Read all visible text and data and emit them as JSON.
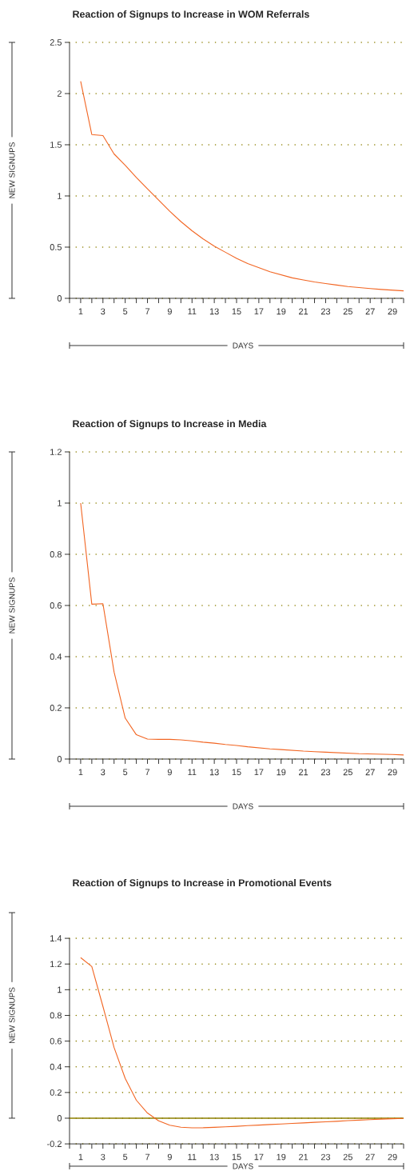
{
  "chart_data": [
    {
      "type": "line",
      "title": "Reaction of Signups to Increase in WOM Referrals",
      "xlabel": "DAYS",
      "ylabel": "NEW SIGNUPS",
      "color": "#f26522",
      "grid": "y",
      "x": [
        1,
        2,
        3,
        4,
        5,
        6,
        7,
        8,
        9,
        10,
        11,
        12,
        13,
        14,
        15,
        16,
        17,
        18,
        19,
        20,
        21,
        22,
        23,
        24,
        25,
        26,
        27,
        28,
        29,
        30
      ],
      "values": [
        2.12,
        1.6,
        1.59,
        1.41,
        1.3,
        1.18,
        1.07,
        0.96,
        0.85,
        0.75,
        0.66,
        0.58,
        0.51,
        0.45,
        0.39,
        0.34,
        0.3,
        0.26,
        0.23,
        0.2,
        0.18,
        0.16,
        0.145,
        0.13,
        0.115,
        0.105,
        0.095,
        0.087,
        0.08,
        0.073
      ],
      "xlim": [
        0,
        30
      ],
      "ylim": [
        0,
        2.5
      ],
      "yticks": [
        0,
        0.5,
        1,
        1.5,
        2,
        2.5
      ],
      "xticks": [
        {
          "value": 0,
          "label": null
        },
        1,
        {
          "value": 2,
          "label": null
        },
        3,
        {
          "value": 4,
          "label": null
        },
        5,
        {
          "value": 6,
          "label": null
        },
        7,
        {
          "value": 8,
          "label": null
        },
        9,
        {
          "value": 10,
          "label": null
        },
        11,
        {
          "value": 12,
          "label": null
        },
        13,
        {
          "value": 14,
          "label": null
        },
        15,
        {
          "value": 16,
          "label": null
        },
        17,
        {
          "value": 18,
          "label": null
        },
        19,
        {
          "value": 20,
          "label": null
        },
        21,
        {
          "value": 22,
          "label": null
        },
        23,
        {
          "value": 24,
          "label": null
        },
        25,
        {
          "value": 26,
          "label": null
        },
        27,
        {
          "value": 28,
          "label": null
        },
        29,
        {
          "value": 30,
          "label": null
        }
      ]
    },
    {
      "type": "line",
      "title": "Reaction of Signups to Increase in Media",
      "xlabel": "DAYS",
      "ylabel": "NEW SIGNUPS",
      "color": "#f26522",
      "grid": "y",
      "x": [
        1,
        2,
        3,
        4,
        5,
        6,
        7,
        8,
        9,
        10,
        11,
        12,
        13,
        14,
        15,
        16,
        17,
        18,
        19,
        20,
        21,
        22,
        23,
        24,
        25,
        26,
        27,
        28,
        29,
        30
      ],
      "values": [
        1.0,
        0.605,
        0.607,
        0.34,
        0.16,
        0.095,
        0.078,
        0.077,
        0.077,
        0.075,
        0.071,
        0.066,
        0.062,
        0.057,
        0.053,
        0.048,
        0.044,
        0.04,
        0.037,
        0.034,
        0.031,
        0.029,
        0.027,
        0.025,
        0.023,
        0.021,
        0.02,
        0.019,
        0.018,
        0.016
      ],
      "xlim": [
        0,
        30
      ],
      "ylim": [
        0,
        1.2
      ],
      "yticks": [
        0,
        0.2,
        0.4,
        0.6,
        0.8,
        1,
        1.2
      ],
      "xticks": [
        {
          "value": 0,
          "label": null
        },
        1,
        {
          "value": 2,
          "label": null
        },
        3,
        {
          "value": 4,
          "label": null
        },
        5,
        {
          "value": 6,
          "label": null
        },
        7,
        {
          "value": 8,
          "label": null
        },
        9,
        {
          "value": 10,
          "label": null
        },
        11,
        {
          "value": 12,
          "label": null
        },
        13,
        {
          "value": 14,
          "label": null
        },
        15,
        {
          "value": 16,
          "label": null
        },
        17,
        {
          "value": 18,
          "label": null
        },
        19,
        {
          "value": 20,
          "label": null
        },
        21,
        {
          "value": 22,
          "label": null
        },
        23,
        {
          "value": 24,
          "label": null
        },
        25,
        {
          "value": 26,
          "label": null
        },
        27,
        {
          "value": 28,
          "label": null
        },
        29,
        {
          "value": 30,
          "label": null
        }
      ]
    },
    {
      "type": "line",
      "title": "Reaction of Signups to Increase in Promotional Events",
      "xlabel": "DAYS",
      "ylabel": "NEW SIGNUPS",
      "color": "#f26522",
      "grid": "y",
      "x": [
        1,
        2,
        3,
        4,
        5,
        6,
        7,
        8,
        9,
        10,
        11,
        12,
        13,
        14,
        15,
        16,
        17,
        18,
        19,
        20,
        21,
        22,
        23,
        24,
        25,
        26,
        27,
        28,
        29,
        30
      ],
      "values": [
        1.25,
        1.18,
        0.87,
        0.55,
        0.31,
        0.14,
        0.04,
        -0.02,
        -0.055,
        -0.07,
        -0.075,
        -0.074,
        -0.071,
        -0.067,
        -0.063,
        -0.058,
        -0.054,
        -0.049,
        -0.045,
        -0.041,
        -0.037,
        -0.032,
        -0.028,
        -0.024,
        -0.019,
        -0.015,
        -0.011,
        -0.007,
        -0.004,
        -0.002
      ],
      "xlim": [
        0,
        30
      ],
      "ylim": [
        -0.2,
        1.4
      ],
      "yticks": [
        -0.2,
        0,
        0.2,
        0.4,
        0.6,
        0.8,
        1,
        1.2,
        1.4
      ],
      "xticks": [
        {
          "value": 0,
          "label": null
        },
        1,
        {
          "value": 2,
          "label": null
        },
        3,
        {
          "value": 4,
          "label": null
        },
        5,
        {
          "value": 6,
          "label": null
        },
        7,
        {
          "value": 8,
          "label": null
        },
        9,
        {
          "value": 10,
          "label": null
        },
        11,
        {
          "value": 12,
          "label": null
        },
        13,
        {
          "value": 14,
          "label": null
        },
        15,
        {
          "value": 16,
          "label": null
        },
        17,
        {
          "value": 18,
          "label": null
        },
        19,
        {
          "value": 20,
          "label": null
        },
        21,
        {
          "value": 22,
          "label": null
        },
        23,
        {
          "value": 24,
          "label": null
        },
        25,
        {
          "value": 26,
          "label": null
        },
        27,
        {
          "value": 28,
          "label": null
        },
        29,
        {
          "value": 30,
          "label": null
        }
      ],
      "ref_lines": [
        {
          "axis": "y",
          "value": 0,
          "color": "#8c7f00"
        }
      ]
    }
  ]
}
